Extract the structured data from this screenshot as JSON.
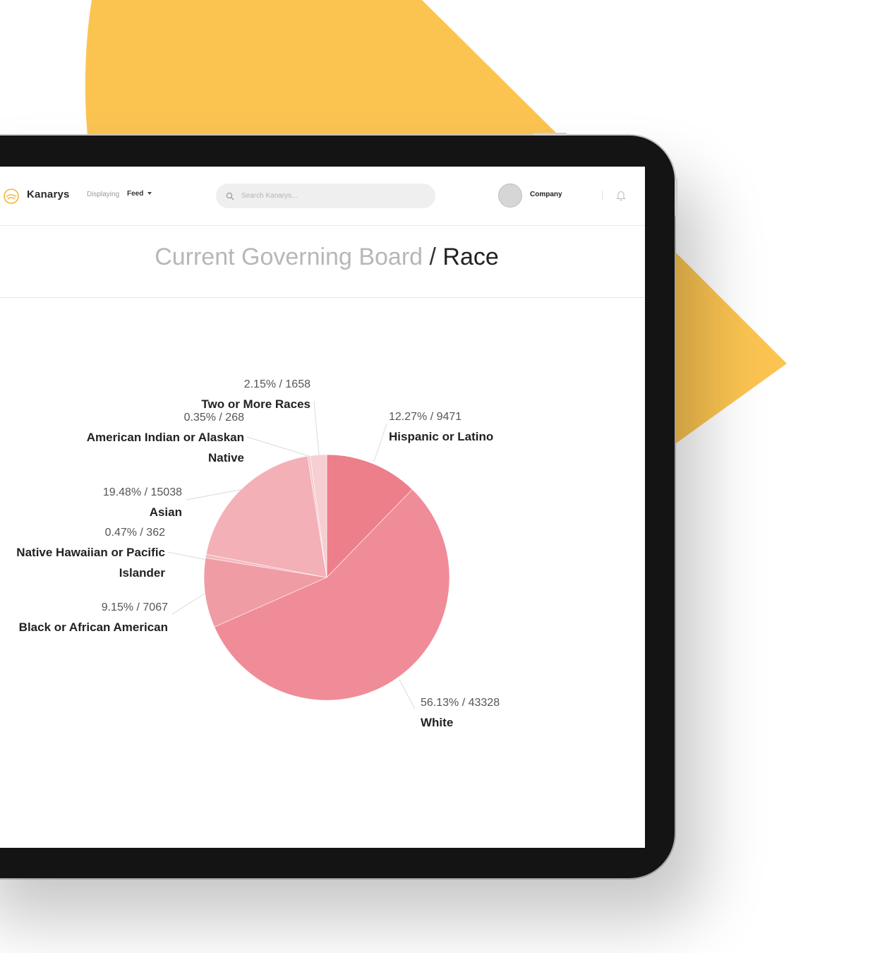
{
  "header": {
    "brand": "Kanarys",
    "displaying_label": "Displaying",
    "feed_value": "Feed",
    "search_placeholder": "Search Kanarys...",
    "company_label": "Company"
  },
  "page": {
    "title_crumb": "Current Governing Board",
    "title_separator": "/",
    "title_current": "Race"
  },
  "colors": {
    "accent_yellow": "#FBC451",
    "slice_colors": [
      "#EC7F8A",
      "#F08C97",
      "#F09CA5",
      "#F5B9BF",
      "#F3B0B6",
      "#F6C8CC",
      "#F7CED2"
    ]
  },
  "icons": {
    "logo": "kanarys-logo-icon",
    "search": "search-icon",
    "notification": "bell-icon"
  },
  "chart_data": {
    "type": "pie",
    "slices": [
      {
        "name": "Hispanic or Latino",
        "percent": 12.27,
        "value": 9471,
        "label": "12.27% / 9471"
      },
      {
        "name": "White",
        "percent": 56.13,
        "value": 43328,
        "label": "56.13% / 43328"
      },
      {
        "name": "Black or African American",
        "percent": 9.15,
        "value": 7067,
        "label": "9.15% / 7067"
      },
      {
        "name": "Native Hawaiian or Pacific Islander",
        "percent": 0.47,
        "value": 362,
        "label": "0.47% / 362"
      },
      {
        "name": "Asian",
        "percent": 19.48,
        "value": 15038,
        "label": "19.48% / 15038"
      },
      {
        "name": "American Indian or Alaskan Native",
        "percent": 0.35,
        "value": 268,
        "label": "0.35% / 268"
      },
      {
        "name": "Two or More Races",
        "percent": 2.15,
        "value": 1658,
        "label": "2.15% / 1658"
      }
    ]
  }
}
